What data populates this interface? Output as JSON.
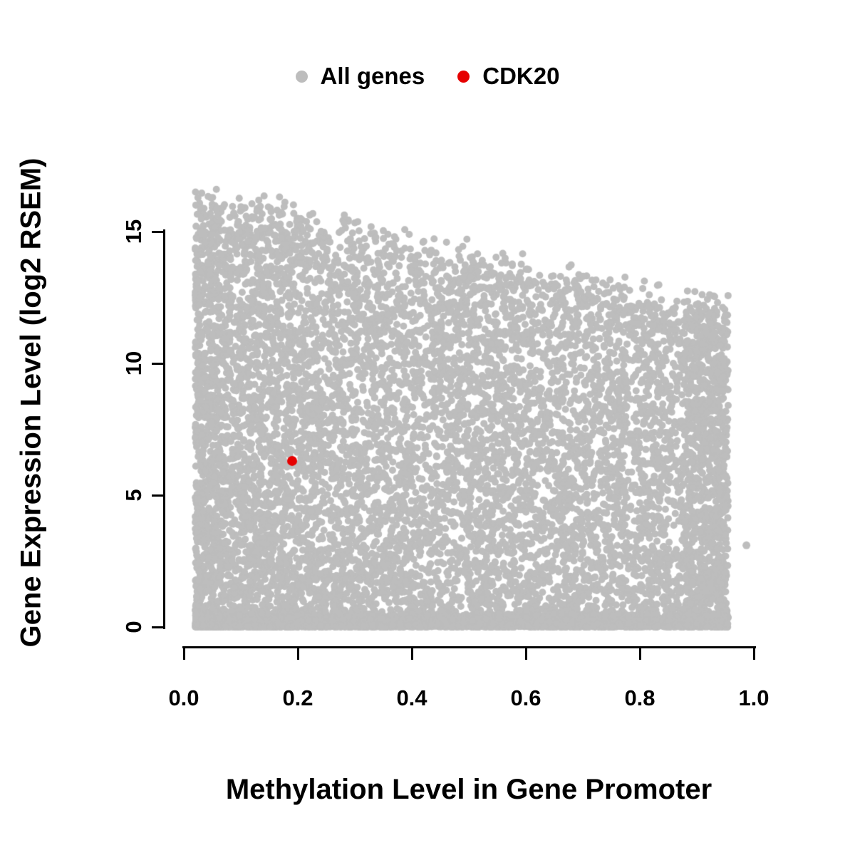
{
  "chart_data": {
    "type": "scatter",
    "title": "",
    "xlabel": "Methylation Level in Gene Promoter",
    "ylabel": "Gene Expression Level (log2 RSEM)",
    "xlim": [
      0.0,
      1.0
    ],
    "ylim": [
      0,
      17
    ],
    "grid": false,
    "legend_position": "top-center",
    "x_ticks": [
      "0.0",
      "0.2",
      "0.4",
      "0.6",
      "0.8",
      "1.0"
    ],
    "x_tick_values": [
      0.0,
      0.2,
      0.4,
      0.6,
      0.8,
      1.0
    ],
    "y_ticks": [
      "0",
      "5",
      "10",
      "15"
    ],
    "y_tick_values": [
      0,
      5,
      10,
      15
    ],
    "legend": [
      {
        "label": "All genes",
        "color": "#bdbdbd"
      },
      {
        "label": "CDK20",
        "color": "#e60000"
      }
    ],
    "series": [
      {
        "name": "All genes",
        "color": "#bdbdbd",
        "kind": "dense-cloud",
        "n_points": 12000,
        "x_range": [
          0.02,
          0.955
        ],
        "y_range": [
          0,
          16.6
        ],
        "envelope": "y_max decreases from ~16.5 at x=0 to ~12 at x=0.95",
        "seed": 42,
        "outliers": [
          [
            0.987,
            3.1
          ]
        ]
      },
      {
        "name": "CDK20",
        "color": "#e60000",
        "kind": "highlight-point",
        "points": [
          [
            0.19,
            6.3
          ]
        ]
      }
    ]
  }
}
